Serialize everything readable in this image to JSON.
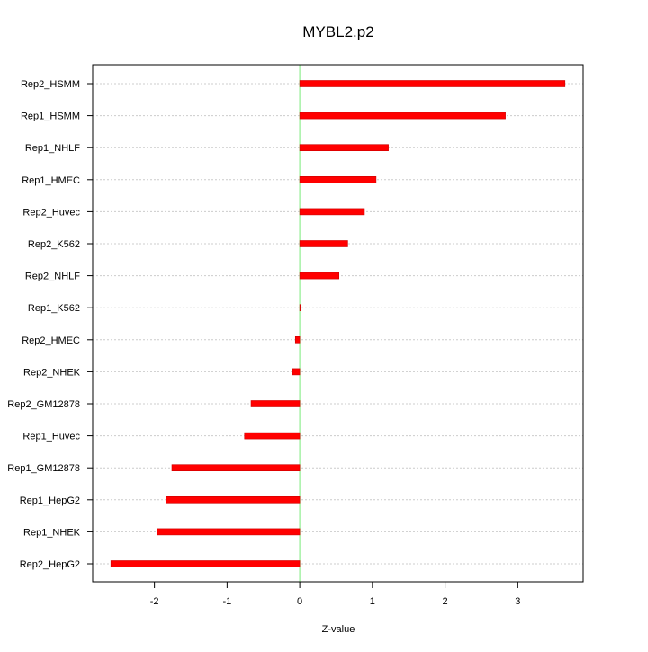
{
  "chart_data": {
    "type": "bar",
    "orientation": "horizontal",
    "title": "MYBL2.p2",
    "xlabel": "Z-value",
    "ylabel": "",
    "xlim": [
      -2.85,
      3.9
    ],
    "xticks": [
      -2,
      -1,
      0,
      1,
      2,
      3
    ],
    "grid": true,
    "categories": [
      "Rep2_HSMM",
      "Rep1_HSMM",
      "Rep1_NHLF",
      "Rep1_HMEC",
      "Rep2_Huvec",
      "Rep2_K562",
      "Rep2_NHLF",
      "Rep1_K562",
      "Rep2_HMEC",
      "Rep2_NHEK",
      "Rep2_GM12878",
      "Rep1_Huvec",
      "Rep1_GM12878",
      "Rep1_HepG2",
      "Rep1_NHEK",
      "Rep2_HepG2"
    ],
    "values": [
      3.65,
      2.83,
      1.22,
      1.05,
      0.89,
      0.66,
      0.54,
      0.01,
      -0.06,
      -0.1,
      -0.67,
      -0.76,
      -1.76,
      -1.84,
      -1.96,
      -2.6
    ],
    "colors": {
      "bar": "#ff0000",
      "bar_outline": "#cc0000",
      "zero_line": "#90ee90",
      "grid": "#cccccc",
      "axis": "#000000"
    }
  }
}
